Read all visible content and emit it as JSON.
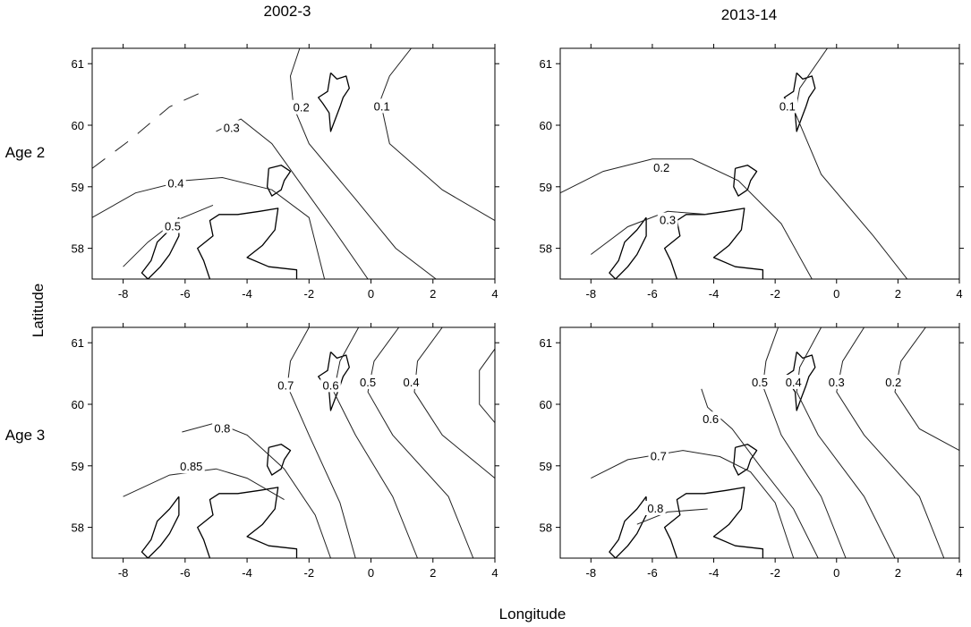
{
  "figure": {
    "column_titles": [
      "2002-3",
      "2013-14"
    ],
    "row_labels": [
      "Age 2",
      "Age 3"
    ],
    "xlabel": "Longitude",
    "ylabel": "Latitude"
  },
  "chart_data": [
    {
      "type": "contour",
      "title": "2002-3",
      "row": "Age 2",
      "xlim": [
        -9,
        4
      ],
      "ylim": [
        57.5,
        61.25
      ],
      "xticks": [
        -8,
        -6,
        -4,
        -2,
        0,
        2,
        4
      ],
      "yticks": [
        58,
        59,
        60,
        61
      ],
      "contours": [
        {
          "label": "0.5",
          "points": [
            [
              -8.0,
              57.7
            ],
            [
              -7.2,
              58.1
            ],
            [
              -6.3,
              58.45
            ],
            [
              -5.1,
              58.7
            ]
          ],
          "label_at": [
            -6.4,
            58.35
          ]
        },
        {
          "label": "0.4",
          "points": [
            [
              -9.0,
              58.5
            ],
            [
              -7.6,
              58.9
            ],
            [
              -6.0,
              59.1
            ],
            [
              -4.8,
              59.15
            ],
            [
              -3.2,
              58.95
            ],
            [
              -2.0,
              58.5
            ],
            [
              -1.5,
              57.5
            ]
          ],
          "label_at": [
            -6.3,
            59.05
          ]
        },
        {
          "label": "0.3",
          "points": [
            [
              -5.0,
              59.9
            ],
            [
              -4.2,
              60.1
            ],
            [
              -3.2,
              59.7
            ],
            [
              -2.2,
              59.0
            ],
            [
              -1.2,
              58.3
            ],
            [
              -0.1,
              57.5
            ]
          ],
          "label_at": [
            -4.5,
            59.95
          ]
        },
        {
          "label": "0.2",
          "points": [
            [
              -2.3,
              61.25
            ],
            [
              -2.6,
              60.8
            ],
            [
              -2.5,
              60.3
            ],
            [
              -2.0,
              59.7
            ],
            [
              -0.5,
              58.8
            ],
            [
              0.8,
              58.0
            ],
            [
              2.1,
              57.5
            ]
          ],
          "label_at": [
            -2.25,
            60.28
          ]
        },
        {
          "label": "0.1",
          "points": [
            [
              1.3,
              61.25
            ],
            [
              0.6,
              60.8
            ],
            [
              0.3,
              60.4
            ],
            [
              0.6,
              59.7
            ],
            [
              2.3,
              58.95
            ],
            [
              4.0,
              58.45
            ]
          ],
          "label_at": [
            0.35,
            60.3
          ]
        },
        {
          "label": "",
          "dashed": true,
          "points": [
            [
              -9.0,
              59.3
            ],
            [
              -7.8,
              59.75
            ],
            [
              -6.5,
              60.3
            ],
            [
              -5.4,
              60.55
            ]
          ]
        }
      ]
    },
    {
      "type": "contour",
      "title": "2013-14",
      "row": "Age 2",
      "xlim": [
        -9,
        4
      ],
      "ylim": [
        57.5,
        61.25
      ],
      "xticks": [
        -8,
        -6,
        -4,
        -2,
        0,
        2,
        4
      ],
      "yticks": [
        58,
        59,
        60,
        61
      ],
      "contours": [
        {
          "label": "0.3",
          "points": [
            [
              -8.0,
              57.9
            ],
            [
              -6.8,
              58.35
            ],
            [
              -5.5,
              58.6
            ],
            [
              -4.2,
              58.55
            ]
          ],
          "label_at": [
            -5.5,
            58.45
          ]
        },
        {
          "label": "0.2",
          "points": [
            [
              -9.0,
              58.9
            ],
            [
              -7.6,
              59.25
            ],
            [
              -6.0,
              59.45
            ],
            [
              -4.7,
              59.45
            ],
            [
              -3.2,
              59.1
            ],
            [
              -1.8,
              58.4
            ],
            [
              -0.8,
              57.5
            ]
          ],
          "label_at": [
            -5.7,
            59.3
          ]
        },
        {
          "label": "0.1",
          "points": [
            [
              -0.3,
              61.25
            ],
            [
              -1.2,
              60.6
            ],
            [
              -1.35,
              60.2
            ],
            [
              -0.5,
              59.2
            ],
            [
              1.2,
              58.2
            ],
            [
              2.3,
              57.5
            ]
          ],
          "label_at": [
            -1.6,
            60.3
          ]
        }
      ]
    },
    {
      "type": "contour",
      "title": "2002-3",
      "row": "Age 3",
      "xlim": [
        -9,
        4
      ],
      "ylim": [
        57.5,
        61.25
      ],
      "xticks": [
        -8,
        -6,
        -4,
        -2,
        0,
        2,
        4
      ],
      "yticks": [
        58,
        59,
        60,
        61
      ],
      "contours": [
        {
          "label": "0.85",
          "points": [
            [
              -8.0,
              58.5
            ],
            [
              -6.5,
              58.85
            ],
            [
              -5.0,
              58.95
            ],
            [
              -4.0,
              58.8
            ],
            [
              -2.8,
              58.45
            ]
          ],
          "label_at": [
            -5.8,
            58.98
          ]
        },
        {
          "label": "0.8",
          "points": [
            [
              -6.1,
              59.55
            ],
            [
              -5.0,
              59.7
            ],
            [
              -4.0,
              59.5
            ],
            [
              -2.8,
              58.95
            ],
            [
              -1.8,
              58.2
            ],
            [
              -1.3,
              57.5
            ]
          ],
          "label_at": [
            -4.8,
            59.6
          ]
        },
        {
          "label": "0.7",
          "points": [
            [
              -2.0,
              61.25
            ],
            [
              -2.6,
              60.7
            ],
            [
              -2.7,
              60.3
            ],
            [
              -2.0,
              59.5
            ],
            [
              -1.0,
              58.4
            ],
            [
              -0.5,
              57.5
            ]
          ],
          "label_at": [
            -2.75,
            60.3
          ]
        },
        {
          "label": "0.6",
          "points": [
            [
              -0.4,
              61.25
            ],
            [
              -1.0,
              60.7
            ],
            [
              -1.2,
              60.2
            ],
            [
              -0.5,
              59.5
            ],
            [
              0.7,
              58.5
            ],
            [
              1.5,
              57.5
            ]
          ],
          "label_at": [
            -1.3,
            60.3
          ]
        },
        {
          "label": "0.5",
          "points": [
            [
              0.9,
              61.25
            ],
            [
              0.1,
              60.7
            ],
            [
              -0.1,
              60.2
            ],
            [
              0.7,
              59.5
            ],
            [
              2.5,
              58.5
            ],
            [
              3.3,
              57.5
            ]
          ],
          "label_at": [
            -0.1,
            60.35
          ]
        },
        {
          "label": "0.4",
          "points": [
            [
              2.3,
              61.25
            ],
            [
              1.5,
              60.7
            ],
            [
              1.4,
              60.2
            ],
            [
              2.3,
              59.5
            ],
            [
              4.0,
              58.8
            ]
          ],
          "label_at": [
            1.3,
            60.35
          ]
        },
        {
          "label": "",
          "points": [
            [
              4.0,
              60.9
            ],
            [
              3.5,
              60.55
            ],
            [
              3.5,
              60.0
            ],
            [
              4.0,
              59.7
            ]
          ]
        }
      ]
    },
    {
      "type": "contour",
      "title": "2013-14",
      "row": "Age 3",
      "xlim": [
        -9,
        4
      ],
      "ylim": [
        57.5,
        61.25
      ],
      "xticks": [
        -8,
        -6,
        -4,
        -2,
        0,
        2,
        4
      ],
      "yticks": [
        58,
        59,
        60,
        61
      ],
      "contours": [
        {
          "label": "0.8",
          "points": [
            [
              -6.5,
              58.05
            ],
            [
              -5.5,
              58.25
            ],
            [
              -4.2,
              58.3
            ]
          ],
          "label_at": [
            -5.9,
            58.3
          ]
        },
        {
          "label": "0.7",
          "points": [
            [
              -8.0,
              58.8
            ],
            [
              -6.8,
              59.1
            ],
            [
              -5.0,
              59.25
            ],
            [
              -3.8,
              59.15
            ],
            [
              -2.8,
              58.9
            ],
            [
              -2.0,
              58.4
            ],
            [
              -1.4,
              57.5
            ]
          ],
          "label_at": [
            -5.8,
            59.15
          ]
        },
        {
          "label": "0.6",
          "points": [
            [
              -4.4,
              60.25
            ],
            [
              -4.2,
              59.95
            ],
            [
              -3.4,
              59.6
            ],
            [
              -2.5,
              59.0
            ],
            [
              -1.4,
              58.3
            ],
            [
              -0.6,
              57.5
            ]
          ],
          "label_at": [
            -4.1,
            59.75
          ]
        },
        {
          "label": "0.5",
          "points": [
            [
              -1.9,
              61.25
            ],
            [
              -2.3,
              60.7
            ],
            [
              -2.4,
              60.3
            ],
            [
              -1.8,
              59.5
            ],
            [
              -0.5,
              58.5
            ],
            [
              0.3,
              57.5
            ]
          ],
          "label_at": [
            -2.5,
            60.35
          ]
        },
        {
          "label": "0.4",
          "points": [
            [
              -0.5,
              61.25
            ],
            [
              -1.2,
              60.6
            ],
            [
              -1.3,
              60.2
            ],
            [
              -0.6,
              59.5
            ],
            [
              0.9,
              58.5
            ],
            [
              1.9,
              57.5
            ]
          ],
          "label_at": [
            -1.4,
            60.35
          ]
        },
        {
          "label": "0.3",
          "points": [
            [
              0.9,
              61.25
            ],
            [
              0.2,
              60.7
            ],
            [
              0.0,
              60.2
            ],
            [
              0.9,
              59.5
            ],
            [
              2.7,
              58.5
            ],
            [
              3.5,
              57.5
            ]
          ],
          "label_at": [
            0.0,
            60.35
          ]
        },
        {
          "label": "0.2",
          "points": [
            [
              2.9,
              61.25
            ],
            [
              2.1,
              60.7
            ],
            [
              1.9,
              60.2
            ],
            [
              2.7,
              59.6
            ],
            [
              4.0,
              59.25
            ]
          ],
          "label_at": [
            1.85,
            60.35
          ]
        }
      ]
    }
  ]
}
